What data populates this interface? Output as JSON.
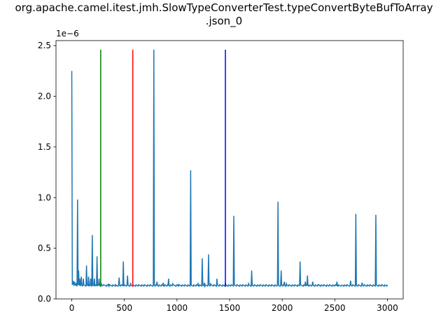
{
  "chart_data": {
    "type": "line",
    "title_line1": "org.apache.camel.itest.jmh.SlowTypeConverterTest.typeConvertByteBufToArray",
    "title_line2": ".json_0",
    "y_offset_label": "1e−6",
    "xlim": [
      -150,
      3150
    ],
    "ylim": [
      0,
      2.55
    ],
    "xticks": [
      0,
      500,
      1000,
      1500,
      2000,
      2500,
      3000
    ],
    "xtick_labels": [
      "0",
      "500",
      "1000",
      "1500",
      "2000",
      "2500",
      "3000"
    ],
    "yticks": [
      0.0,
      0.5,
      1.0,
      1.5,
      2.0,
      2.5
    ],
    "ytick_labels": [
      "0.0",
      "0.5",
      "1.0",
      "1.5",
      "2.0",
      "2.5"
    ],
    "series_color": "#1f77b4",
    "baseline": 0.125,
    "x_max": 3000,
    "spikes": [
      [
        0,
        2.25
      ],
      [
        8,
        0.18
      ],
      [
        15,
        0.16
      ],
      [
        25,
        0.17
      ],
      [
        40,
        0.15
      ],
      [
        55,
        0.98
      ],
      [
        65,
        0.28
      ],
      [
        75,
        0.2
      ],
      [
        90,
        0.22
      ],
      [
        110,
        0.2
      ],
      [
        140,
        0.33
      ],
      [
        160,
        0.22
      ],
      [
        180,
        0.2
      ],
      [
        195,
        0.63
      ],
      [
        215,
        0.2
      ],
      [
        240,
        0.42
      ],
      [
        260,
        0.2
      ],
      [
        280,
        0.15
      ],
      [
        300,
        0.14
      ],
      [
        350,
        0.15
      ],
      [
        420,
        0.13
      ],
      [
        450,
        0.21
      ],
      [
        490,
        0.37
      ],
      [
        530,
        0.23
      ],
      [
        560,
        0.15
      ],
      [
        780,
        2.46
      ],
      [
        810,
        0.17
      ],
      [
        870,
        0.16
      ],
      [
        920,
        0.2
      ],
      [
        960,
        0.15
      ],
      [
        1010,
        0.14
      ],
      [
        1130,
        1.27
      ],
      [
        1200,
        0.15
      ],
      [
        1240,
        0.4
      ],
      [
        1260,
        0.16
      ],
      [
        1300,
        0.44
      ],
      [
        1320,
        0.15
      ],
      [
        1380,
        0.2
      ],
      [
        1460,
        0.16
      ],
      [
        1540,
        0.82
      ],
      [
        1680,
        0.15
      ],
      [
        1710,
        0.28
      ],
      [
        1900,
        0.14
      ],
      [
        1960,
        0.96
      ],
      [
        1990,
        0.28
      ],
      [
        2020,
        0.17
      ],
      [
        2040,
        0.15
      ],
      [
        2170,
        0.37
      ],
      [
        2220,
        0.17
      ],
      [
        2240,
        0.23
      ],
      [
        2290,
        0.17
      ],
      [
        2350,
        0.14
      ],
      [
        2520,
        0.17
      ],
      [
        2560,
        0.13
      ],
      [
        2650,
        0.18
      ],
      [
        2700,
        0.84
      ],
      [
        2760,
        0.16
      ],
      [
        2890,
        0.83
      ],
      [
        2950,
        0.14
      ]
    ],
    "vertical_markers": [
      {
        "x": 275,
        "color": "#008000"
      },
      {
        "x": 580,
        "color": "#ff0000"
      },
      {
        "x": 1460,
        "color": "#0000ff"
      }
    ],
    "marker_ymin": 0.12,
    "marker_ymax": 2.46
  }
}
